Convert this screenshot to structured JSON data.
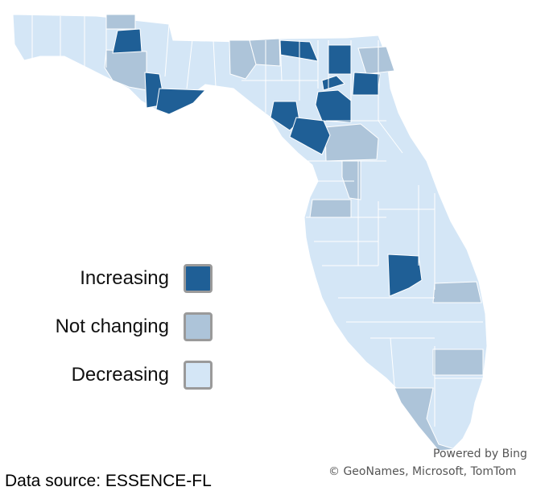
{
  "colors": {
    "increasing": "#1f5f96",
    "not_changing": "#adc4d9",
    "decreasing": "#d4e6f6",
    "border": "#ffffff"
  },
  "legend": [
    {
      "label": "Increasing",
      "color": "#1f5f96"
    },
    {
      "label": "Not changing",
      "color": "#adc4d9"
    },
    {
      "label": "Decreasing",
      "color": "#d4e6f6"
    }
  ],
  "attribution": {
    "powered_by": "Powered by Bing",
    "copyright": "© GeoNames, Microsoft, TomTom"
  },
  "source": "Data source: ESSENCE-FL"
}
